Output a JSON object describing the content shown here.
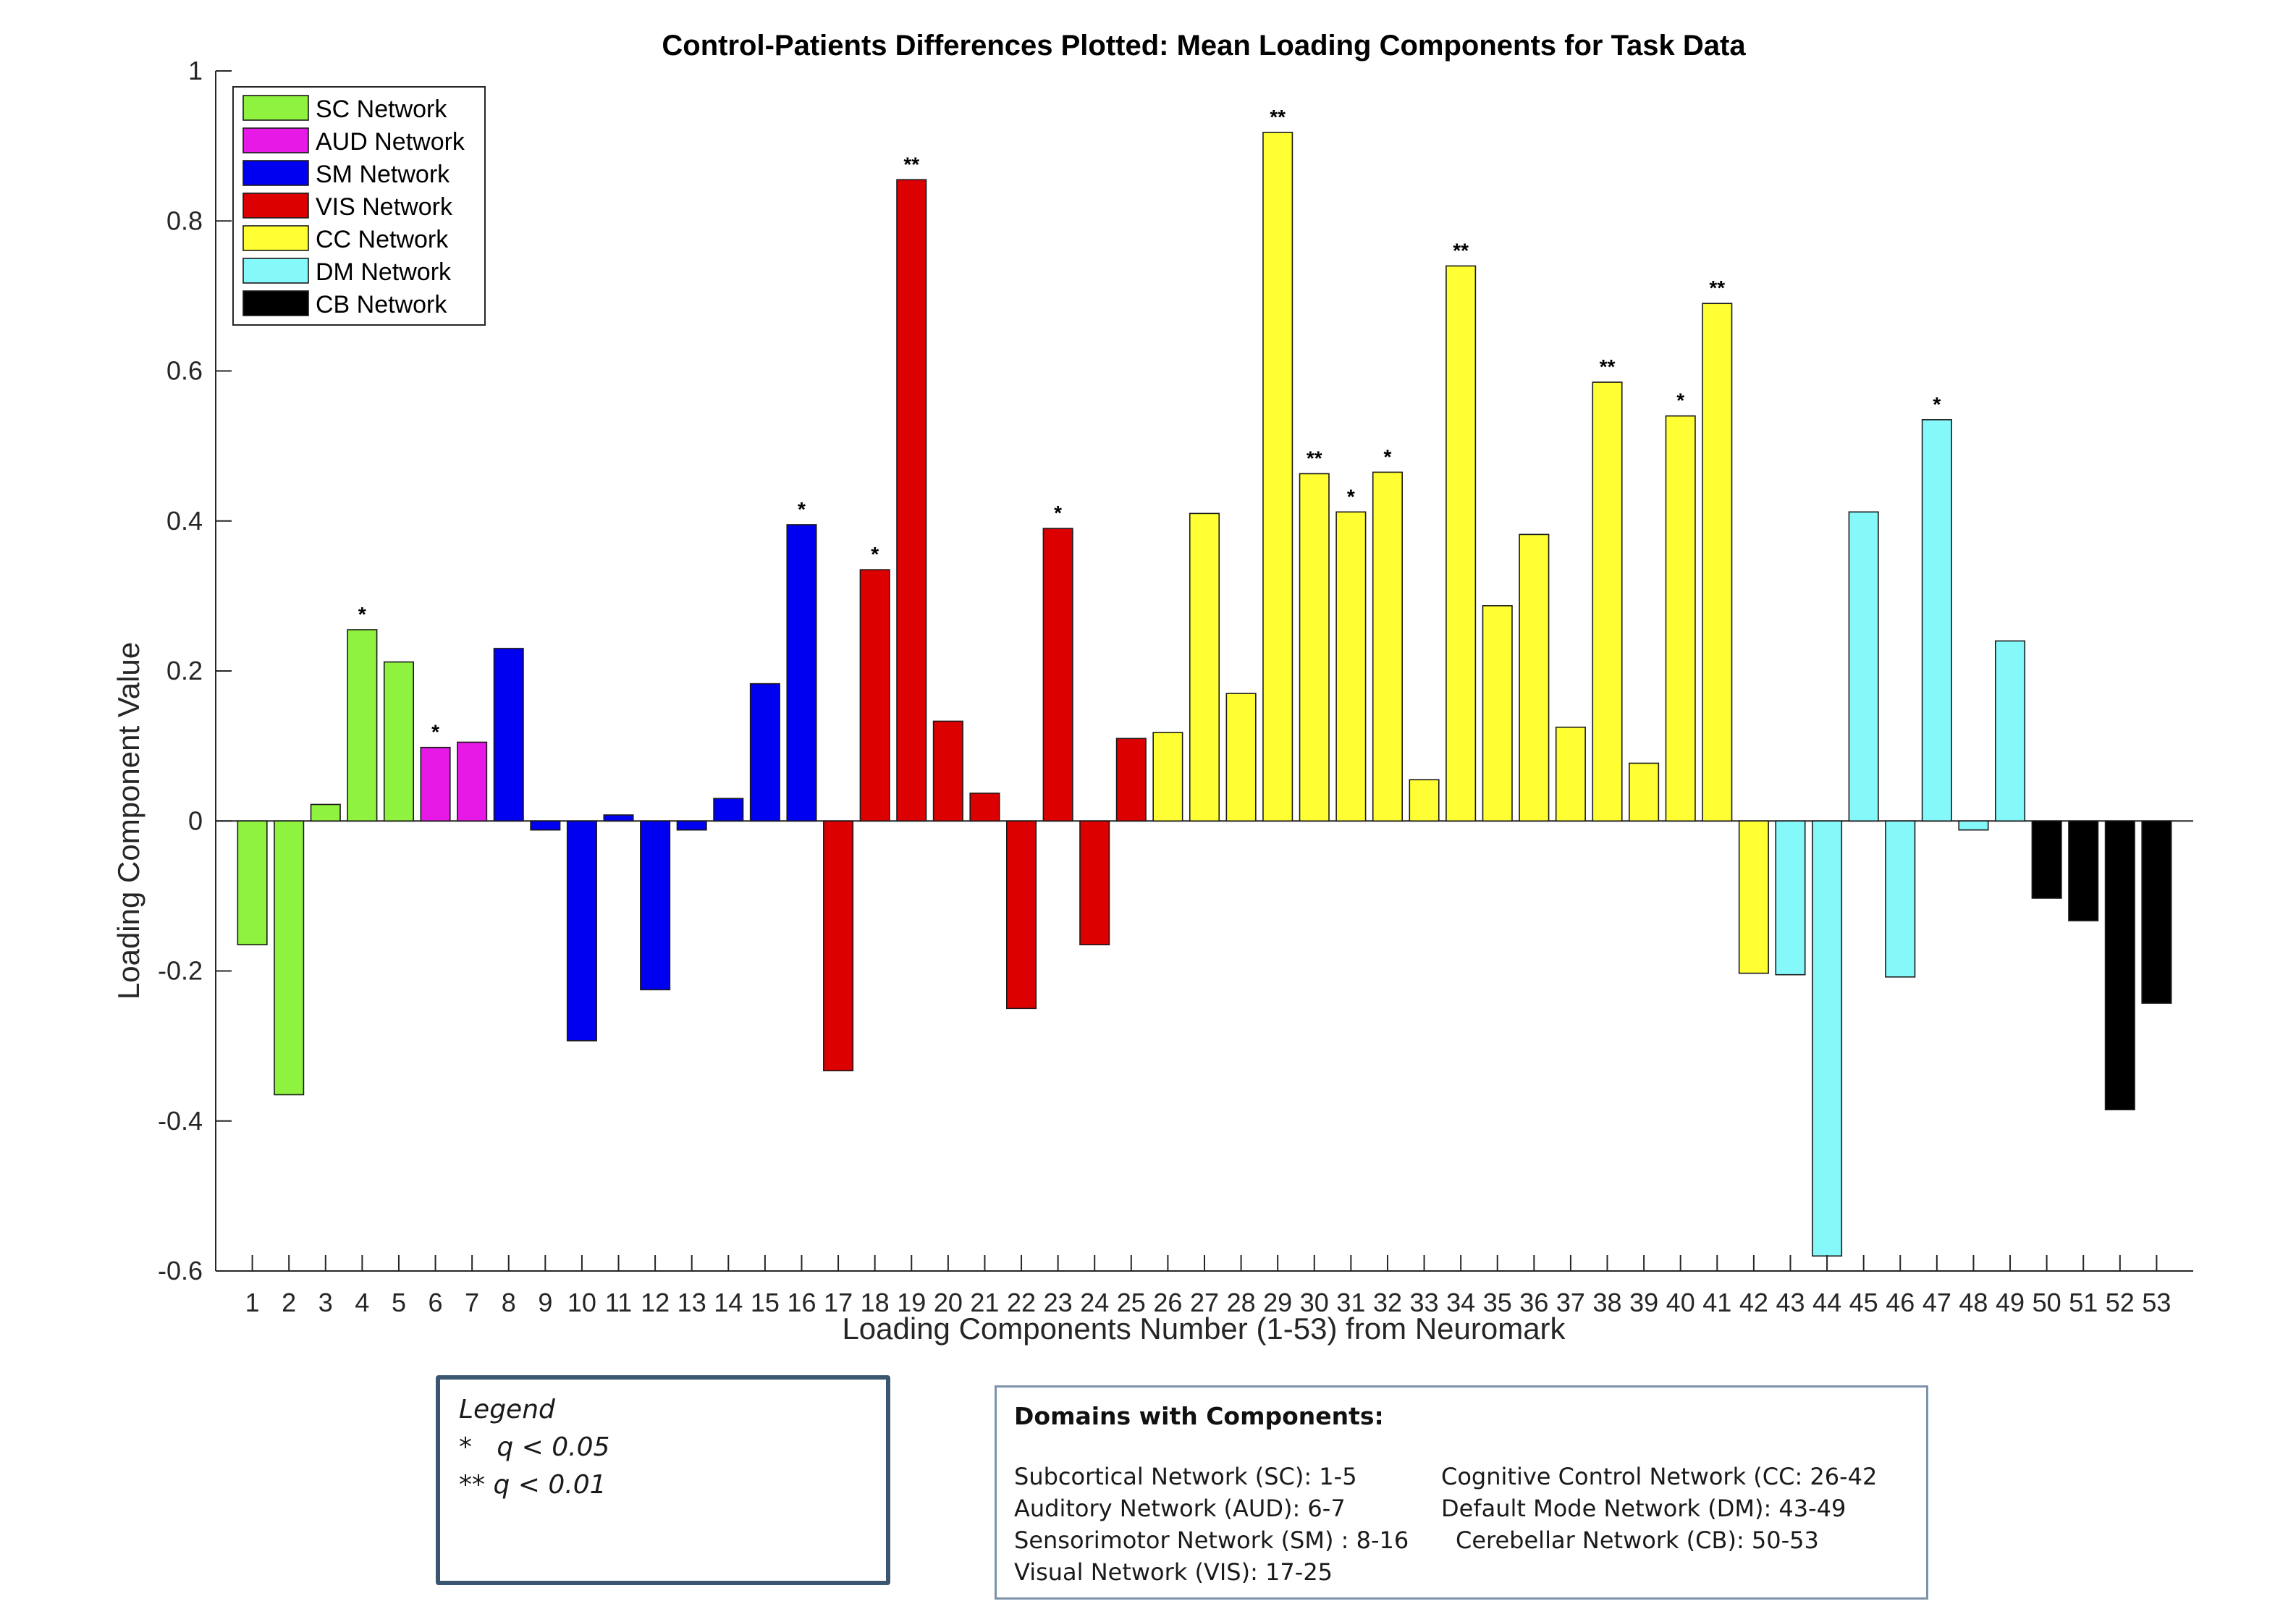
{
  "chart_data": {
    "type": "bar",
    "title": "Control-Patients Differences Plotted: Mean Loading Components for Task Data",
    "xlabel": "Loading Components Number (1-53) from Neuromark",
    "ylabel": "Loading Component Value",
    "ylim": [
      -0.6,
      1
    ],
    "yticks": [
      "-0.6",
      "-0.4",
      "-0.2",
      "0",
      "0.2",
      "0.4",
      "0.6",
      "0.8",
      "1"
    ],
    "grid": false,
    "legend_position": "top-left",
    "categories": [
      "1",
      "2",
      "3",
      "4",
      "5",
      "6",
      "7",
      "8",
      "9",
      "10",
      "11",
      "12",
      "13",
      "14",
      "15",
      "16",
      "17",
      "18",
      "19",
      "20",
      "21",
      "22",
      "23",
      "24",
      "25",
      "26",
      "27",
      "28",
      "29",
      "30",
      "31",
      "32",
      "33",
      "34",
      "35",
      "36",
      "37",
      "38",
      "39",
      "40",
      "41",
      "42",
      "43",
      "44",
      "45",
      "46",
      "47",
      "48",
      "49",
      "50",
      "51",
      "52",
      "53"
    ],
    "values": [
      -0.165,
      -0.365,
      0.022,
      0.255,
      0.212,
      0.098,
      0.105,
      0.23,
      -0.012,
      -0.293,
      0.008,
      -0.225,
      -0.012,
      0.03,
      0.183,
      0.395,
      -0.333,
      0.335,
      0.855,
      0.133,
      0.037,
      -0.25,
      0.39,
      -0.165,
      0.11,
      0.118,
      0.41,
      0.17,
      0.918,
      0.463,
      0.412,
      0.465,
      0.055,
      0.74,
      0.287,
      0.382,
      0.125,
      0.585,
      0.077,
      0.54,
      0.69,
      -0.203,
      -0.205,
      -0.58,
      0.412,
      -0.208,
      0.535,
      -0.012,
      0.24,
      -0.103,
      -0.133,
      -0.385,
      -0.243
    ],
    "network": [
      "SC",
      "SC",
      "SC",
      "SC",
      "SC",
      "AUD",
      "AUD",
      "SM",
      "SM",
      "SM",
      "SM",
      "SM",
      "SM",
      "SM",
      "SM",
      "SM",
      "VIS",
      "VIS",
      "VIS",
      "VIS",
      "VIS",
      "VIS",
      "VIS",
      "VIS",
      "VIS",
      "CC",
      "CC",
      "CC",
      "CC",
      "CC",
      "CC",
      "CC",
      "CC",
      "CC",
      "CC",
      "CC",
      "CC",
      "CC",
      "CC",
      "CC",
      "CC",
      "CC",
      "DM",
      "DM",
      "DM",
      "DM",
      "DM",
      "DM",
      "DM",
      "CB",
      "CB",
      "CB",
      "CB"
    ],
    "significance": [
      "",
      "",
      "",
      "*",
      "",
      "*",
      "",
      "",
      "",
      "",
      "",
      "",
      "",
      "",
      "",
      "*",
      "",
      "*",
      "**",
      "",
      "",
      "",
      "*",
      "",
      "",
      "",
      "",
      "",
      "**",
      "**",
      "*",
      "*",
      "",
      "**",
      "",
      "",
      "",
      "**",
      "",
      "*",
      "**",
      "",
      "",
      "",
      "",
      "",
      "*",
      "",
      "",
      "",
      "",
      "",
      ""
    ],
    "legend": [
      {
        "key": "SC",
        "label": "SC Network",
        "color": "#8ef23e"
      },
      {
        "key": "AUD",
        "label": "AUD Network",
        "color": "#e619e6"
      },
      {
        "key": "SM",
        "label": "SM Network",
        "color": "#0000f0"
      },
      {
        "key": "VIS",
        "label": "VIS Network",
        "color": "#dd0000"
      },
      {
        "key": "CC",
        "label": "CC Network",
        "color": "#ffff33"
      },
      {
        "key": "DM",
        "label": "DM Network",
        "color": "#85f8fa"
      },
      {
        "key": "CB",
        "label": "CB Network",
        "color": "#000000"
      }
    ]
  },
  "significance_legend": {
    "title": "Legend",
    "lines": [
      "*   q < 0.05",
      "** q < 0.01"
    ]
  },
  "domains": {
    "heading": "Domains with Components:",
    "left": [
      "Subcortical Network (SC): 1-5",
      "Auditory Network (AUD): 6-7",
      "Sensorimotor Network (SM) : 8-16",
      "Visual Network (VIS): 17-25"
    ],
    "right": [
      "Cognitive Control Network (CC: 26-42",
      "Default Mode Network (DM): 43-49",
      "Cerebellar Network (CB): 50-53"
    ]
  }
}
